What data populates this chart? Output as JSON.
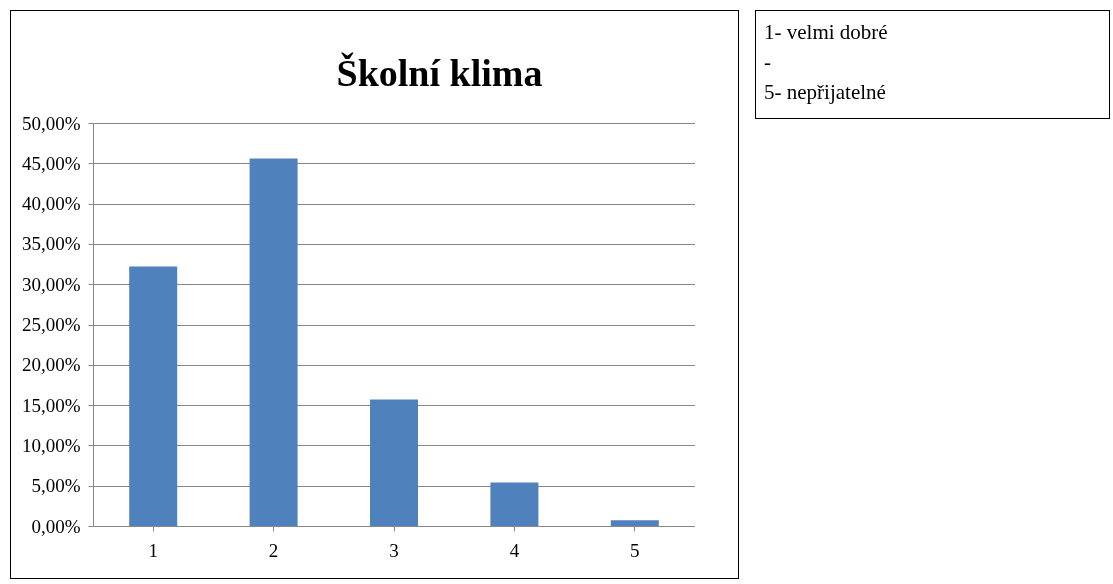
{
  "chart_data": {
    "type": "bar",
    "title": "Školní klima",
    "categories": [
      "1",
      "2",
      "3",
      "4",
      "5"
    ],
    "values": [
      32.2,
      45.6,
      15.7,
      5.4,
      0.7
    ],
    "color": "#4f81bd",
    "ylim": [
      0,
      50
    ],
    "yticks": [
      {
        "value": 0,
        "label": "0,00%"
      },
      {
        "value": 5,
        "label": "5,00%"
      },
      {
        "value": 10,
        "label": "10,00%"
      },
      {
        "value": 15,
        "label": "15,00%"
      },
      {
        "value": 20,
        "label": "20,00%"
      },
      {
        "value": 25,
        "label": "25,00%"
      },
      {
        "value": 30,
        "label": "30,00%"
      },
      {
        "value": 35,
        "label": "35,00%"
      },
      {
        "value": 40,
        "label": "40,00%"
      },
      {
        "value": 45,
        "label": "45,00%"
      },
      {
        "value": 50,
        "label": "50,00%"
      }
    ],
    "grid": "y",
    "annotations": [
      "1- velmi dobré",
      "-",
      "5- nepřijatelné"
    ]
  }
}
